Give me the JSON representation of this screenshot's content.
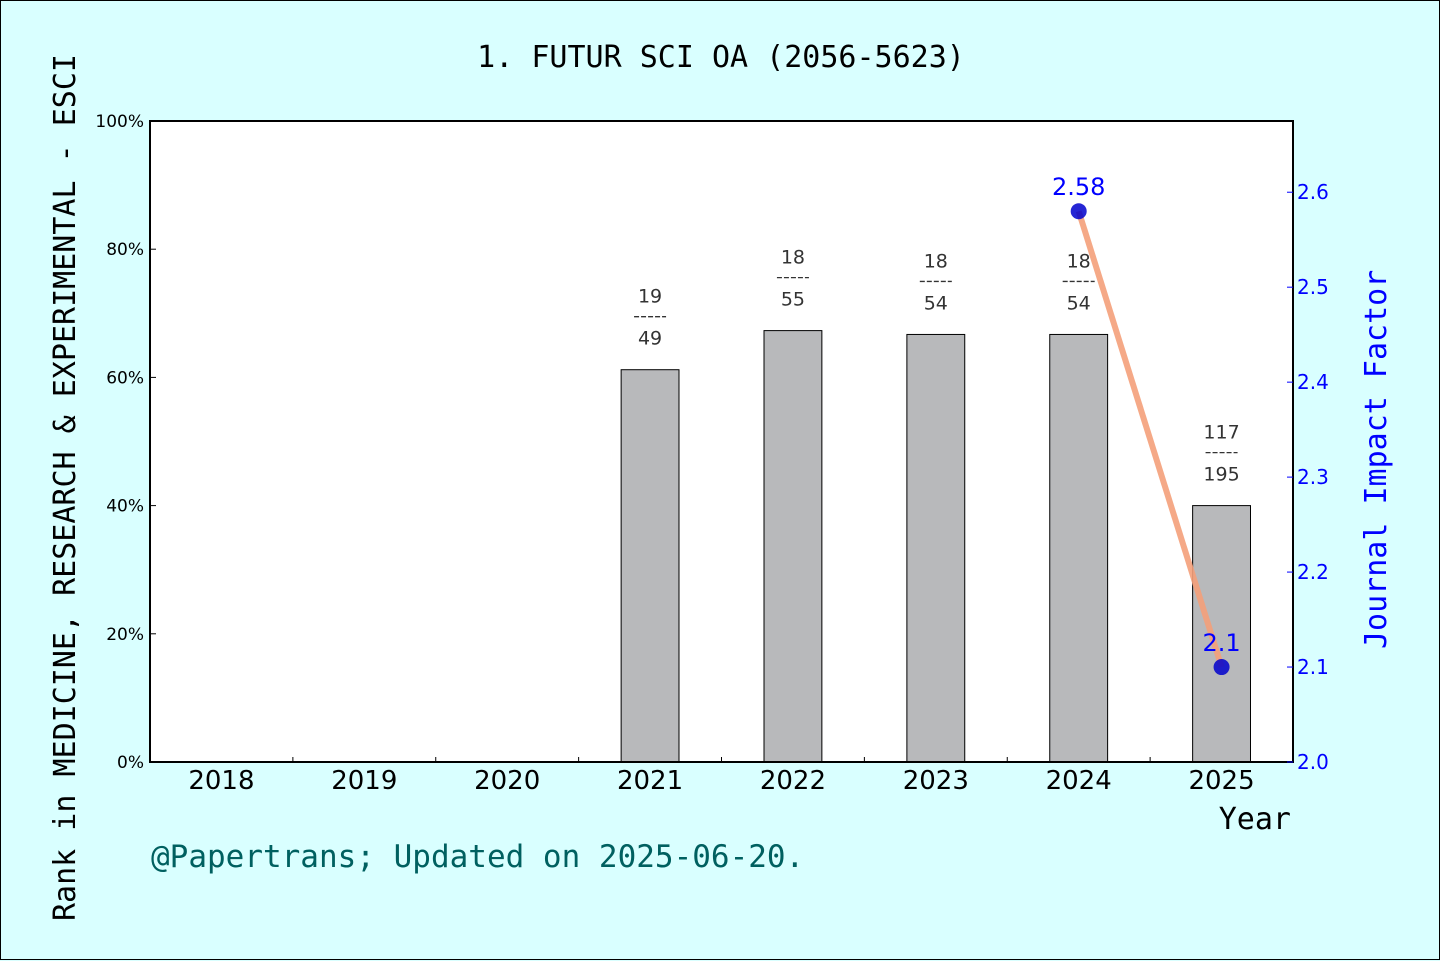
{
  "chart_data": {
    "type": "bar",
    "title": "1. FUTUR SCI OA (2056-5623)",
    "xlabel": "Year",
    "ylabel_left": "Rank in MEDICINE, RESEARCH & EXPERIMENTAL - ESCI",
    "ylabel_right": "Journal Impact Factor",
    "categories": [
      "2018",
      "2019",
      "2020",
      "2021",
      "2022",
      "2023",
      "2024",
      "2025"
    ],
    "left_axis": {
      "ylim": [
        0,
        100
      ],
      "ticks": [
        "0%",
        "20%",
        "40%",
        "60%",
        "80%",
        "100%"
      ]
    },
    "right_axis": {
      "ylim": [
        2.0,
        2.675
      ],
      "ticks": [
        "2.0",
        "2.1",
        "2.2",
        "2.3",
        "2.4",
        "2.5",
        "2.6"
      ]
    },
    "series": [
      {
        "type": "bar",
        "values": [
          null,
          null,
          null,
          61.2,
          67.3,
          66.7,
          66.7,
          40.0
        ],
        "labels": [
          null,
          null,
          null,
          {
            "top": "19",
            "bottom": "49"
          },
          {
            "top": "18",
            "bottom": "55"
          },
          {
            "top": "18",
            "bottom": "54"
          },
          {
            "top": "18",
            "bottom": "54"
          },
          {
            "top": "117",
            "bottom": "195"
          }
        ],
        "color": "#b8b9bb"
      },
      {
        "type": "line",
        "axis": "right",
        "points": [
          {
            "x": "2024",
            "y": 2.58,
            "label": "2.58"
          },
          {
            "x": "2025",
            "y": 2.1,
            "label": "2.1"
          }
        ],
        "line_color": "#f4a07a",
        "marker_color": "#0000cc"
      }
    ]
  },
  "footer": "@Papertrans; Updated on 2025-06-20.",
  "colors": {
    "background": "#d9ffff",
    "plot_bg": "#ffffff",
    "accent": "#0000ff",
    "footer": "#006060"
  }
}
